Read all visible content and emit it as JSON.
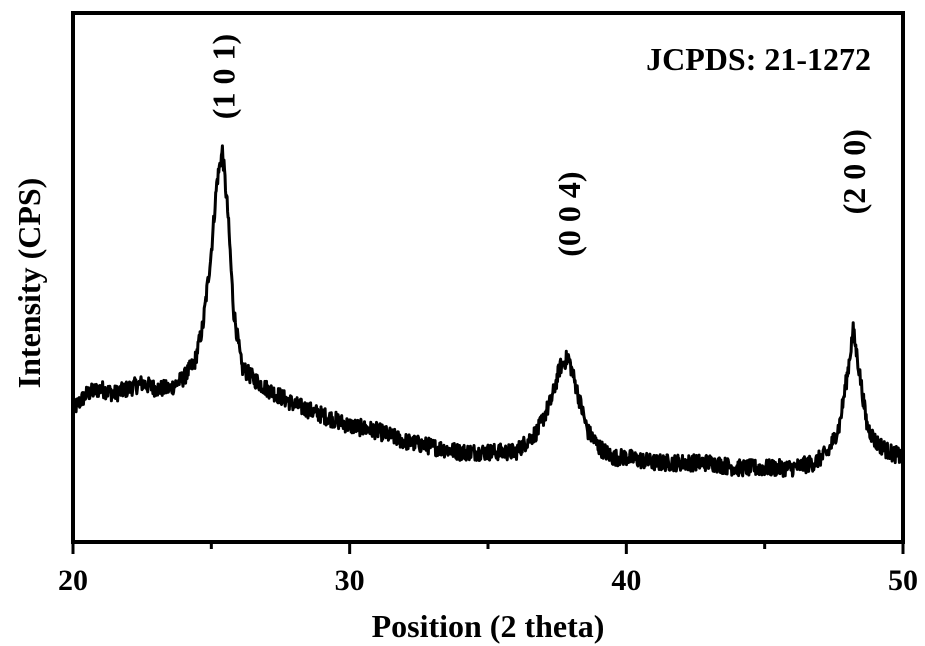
{
  "chart_data": {
    "type": "line",
    "xlabel": "Position (2 theta)",
    "ylabel": "Intensity (CPS)",
    "xlim": [
      20,
      50
    ],
    "ylim": [
      0,
      100
    ],
    "xticks": [
      20,
      30,
      40,
      50
    ],
    "xtick_labels": [
      "20",
      "30",
      "40",
      "50"
    ],
    "minor_xticks": [
      25,
      35,
      45
    ],
    "y_tick_labels_shown": false,
    "grid": false,
    "legend": "none",
    "annotation": "JCPDS: 21-1272",
    "peak_labels": [
      {
        "text": "(1 0 1)",
        "x": 25.4,
        "y": 74
      },
      {
        "text": "(0 0 4)",
        "x": 37.9,
        "y": 48
      },
      {
        "text": "(2 0 0)",
        "x": 48.2,
        "y": 56
      }
    ],
    "series": [
      {
        "color": "#000000",
        "x": [
          20.0,
          20.5,
          21.0,
          21.5,
          22.0,
          22.5,
          23.0,
          23.5,
          24.0,
          24.4,
          24.7,
          25.0,
          25.2,
          25.4,
          25.6,
          25.8,
          26.1,
          26.5,
          27.0,
          28.0,
          29.0,
          30.0,
          31.0,
          32.0,
          33.0,
          34.0,
          35.0,
          36.0,
          36.8,
          37.3,
          37.6,
          37.9,
          38.2,
          38.6,
          39.0,
          39.5,
          40.0,
          41.0,
          42.0,
          43.0,
          44.0,
          45.0,
          46.0,
          46.8,
          47.3,
          47.7,
          48.0,
          48.2,
          48.4,
          48.7,
          49.0,
          49.5,
          50.0
        ],
        "y": [
          25,
          28,
          29,
          28,
          29,
          30,
          29,
          29,
          31,
          34,
          41,
          55,
          68,
          74,
          62,
          44,
          33,
          31,
          29,
          26,
          24,
          22,
          21,
          19,
          18,
          17,
          17,
          17,
          21,
          27,
          33,
          35,
          29,
          21,
          18,
          16,
          16,
          15,
          15,
          15,
          14,
          14,
          14,
          15,
          17,
          22,
          32,
          40,
          33,
          22,
          19,
          17,
          16
        ]
      }
    ]
  }
}
